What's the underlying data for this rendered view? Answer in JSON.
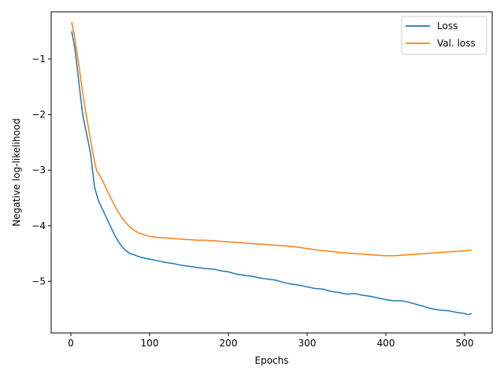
{
  "chart_data": {
    "type": "line",
    "xlabel": "Epochs",
    "ylabel": "Negative log-likelihood",
    "xlim": [
      -25,
      535
    ],
    "ylim": [
      -5.93,
      -0.15
    ],
    "xticks": [
      0,
      100,
      200,
      300,
      400,
      500
    ],
    "yticks": [
      -1,
      -2,
      -3,
      -4,
      -5
    ],
    "xtick_labels": [
      "0",
      "100",
      "200",
      "300",
      "400",
      "500"
    ],
    "ytick_labels": [
      "−1",
      "−2",
      "−3",
      "−4",
      "−5"
    ],
    "grid": false,
    "legend_position": "top-right",
    "series": [
      {
        "name": "Loss",
        "color": "#1f77b4",
        "x": [
          1,
          5,
          10,
          15,
          20,
          25,
          30,
          35,
          40,
          45,
          50,
          55,
          60,
          65,
          70,
          75,
          80,
          85,
          90,
          95,
          100,
          110,
          120,
          130,
          140,
          150,
          160,
          170,
          180,
          190,
          200,
          210,
          220,
          230,
          240,
          250,
          260,
          270,
          280,
          290,
          300,
          310,
          320,
          330,
          340,
          350,
          360,
          370,
          380,
          390,
          400,
          410,
          420,
          430,
          440,
          450,
          460,
          470,
          480,
          490,
          500,
          505,
          509
        ],
        "y": [
          -0.5,
          -0.8,
          -1.4,
          -2.0,
          -2.35,
          -2.7,
          -3.3,
          -3.55,
          -3.7,
          -3.85,
          -4.0,
          -4.15,
          -4.28,
          -4.38,
          -4.45,
          -4.5,
          -4.52,
          -4.55,
          -4.57,
          -4.59,
          -4.6,
          -4.63,
          -4.66,
          -4.68,
          -4.71,
          -4.73,
          -4.75,
          -4.77,
          -4.78,
          -4.81,
          -4.83,
          -4.87,
          -4.89,
          -4.91,
          -4.94,
          -4.96,
          -4.98,
          -5.02,
          -5.05,
          -5.07,
          -5.1,
          -5.13,
          -5.14,
          -5.18,
          -5.2,
          -5.23,
          -5.22,
          -5.25,
          -5.27,
          -5.3,
          -5.33,
          -5.35,
          -5.35,
          -5.38,
          -5.42,
          -5.46,
          -5.5,
          -5.52,
          -5.53,
          -5.56,
          -5.58,
          -5.6,
          -5.58
        ]
      },
      {
        "name": "Val. loss",
        "color": "#ff7f0e",
        "x": [
          1,
          5,
          10,
          15,
          20,
          25,
          30,
          33,
          36,
          40,
          45,
          50,
          55,
          60,
          65,
          70,
          75,
          80,
          85,
          90,
          95,
          100,
          110,
          120,
          130,
          140,
          150,
          160,
          170,
          180,
          190,
          200,
          210,
          220,
          230,
          240,
          250,
          260,
          270,
          280,
          290,
          300,
          310,
          320,
          330,
          340,
          350,
          360,
          370,
          380,
          390,
          400,
          410,
          420,
          430,
          440,
          450,
          460,
          470,
          480,
          490,
          500,
          509
        ],
        "y": [
          -0.33,
          -0.62,
          -1.1,
          -1.6,
          -2.05,
          -2.45,
          -2.85,
          -3.02,
          -3.08,
          -3.18,
          -3.33,
          -3.48,
          -3.62,
          -3.75,
          -3.86,
          -3.95,
          -4.02,
          -4.08,
          -4.12,
          -4.15,
          -4.17,
          -4.19,
          -4.21,
          -4.22,
          -4.23,
          -4.24,
          -4.25,
          -4.26,
          -4.26,
          -4.27,
          -4.28,
          -4.29,
          -4.3,
          -4.31,
          -4.32,
          -4.33,
          -4.34,
          -4.35,
          -4.36,
          -4.37,
          -4.39,
          -4.41,
          -4.43,
          -4.45,
          -4.46,
          -4.48,
          -4.49,
          -4.5,
          -4.51,
          -4.52,
          -4.53,
          -4.54,
          -4.54,
          -4.53,
          -4.52,
          -4.51,
          -4.5,
          -4.49,
          -4.48,
          -4.47,
          -4.46,
          -4.45,
          -4.44
        ]
      }
    ]
  }
}
